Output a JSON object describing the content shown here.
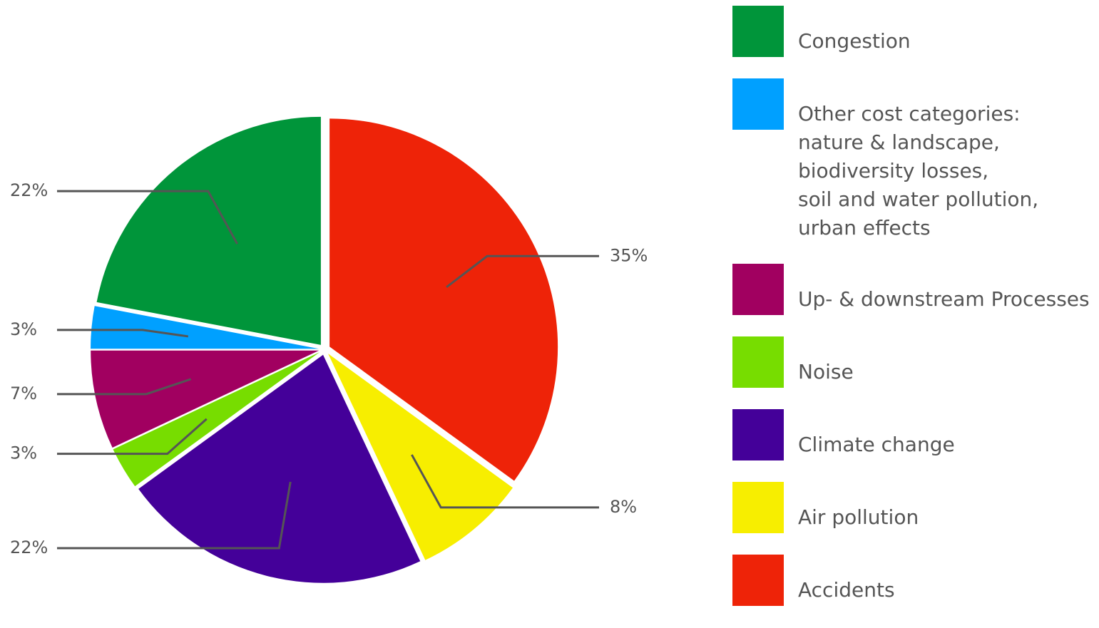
{
  "chart_data": {
    "type": "pie",
    "categories": [
      "Accidents",
      "Air pollution",
      "Climate change",
      "Noise",
      "Up- & downstream Processes",
      "Other cost categories:\nnature & landscape,\nbiodiversity losses,\nsoil and water pollution,\nurban effects",
      "Congestion"
    ],
    "values": [
      35,
      8,
      22,
      3,
      7,
      3,
      22
    ],
    "value_labels": [
      "35%",
      "8%",
      "22%",
      "3%",
      "7%",
      "3%",
      "22%"
    ],
    "colors": [
      "#ee2308",
      "#f7ee00",
      "#440099",
      "#77dd00",
      "#a10060",
      "#00a0ff",
      "#00953a"
    ]
  }
}
